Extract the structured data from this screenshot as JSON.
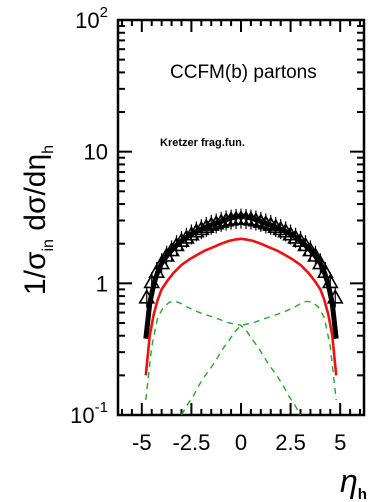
{
  "chart_data": {
    "type": "line",
    "title": "",
    "xlabel": "η",
    "xlabel_sub": "h",
    "ylabel_parts": {
      "prefix": "1/σ",
      "sub_in": "in",
      "middle": " dσ/dη",
      "sub_h": "h"
    },
    "xlim": [
      -6.2,
      6.2
    ],
    "ylim": [
      0.1,
      100
    ],
    "ylog": true,
    "grid": false,
    "xticks": [
      {
        "v": -5,
        "label": "-5"
      },
      {
        "v": -2.5,
        "label": "-2.5"
      },
      {
        "v": 0,
        "label": "0"
      },
      {
        "v": 2.5,
        "label": "2.5"
      },
      {
        "v": 5,
        "label": "5"
      }
    ],
    "yticks": [
      {
        "v": 0.1,
        "base": "10",
        "exp": "-1"
      },
      {
        "v": 1,
        "base": "1",
        "exp": ""
      },
      {
        "v": 10,
        "base": "10",
        "exp": ""
      },
      {
        "v": 100,
        "base": "10",
        "exp": "2"
      }
    ],
    "annotations": {
      "model": "CCFM(b) partons",
      "fragfun": "Kretzer frag.fun."
    },
    "series": [
      {
        "role": "data-triangles",
        "color": "#000000",
        "x": [
          -4.75,
          -4.5,
          -4.25,
          -4.0,
          -3.75,
          -3.5,
          -3.25,
          -3.0,
          -2.75,
          -2.5,
          -2.25,
          -2.0,
          -1.75,
          -1.5,
          -1.25,
          -1.0,
          -0.75,
          -0.5,
          -0.25,
          0.0,
          0.25,
          0.5,
          0.75,
          1.0,
          1.25,
          1.5,
          1.75,
          2.0,
          2.25,
          2.5,
          2.75,
          3.0,
          3.25,
          3.5,
          3.75,
          4.0,
          4.25,
          4.5,
          4.75
        ],
        "y": [
          0.78,
          1.02,
          1.22,
          1.42,
          1.62,
          1.78,
          1.95,
          2.1,
          2.22,
          2.35,
          2.48,
          2.58,
          2.68,
          2.78,
          2.85,
          2.93,
          3.0,
          3.05,
          3.08,
          3.1,
          3.08,
          3.05,
          3.0,
          2.93,
          2.85,
          2.78,
          2.68,
          2.58,
          2.48,
          2.35,
          2.22,
          2.1,
          1.95,
          1.78,
          1.62,
          1.42,
          1.22,
          1.02,
          0.78
        ]
      },
      {
        "role": "total-thick",
        "color": "#000000",
        "x": [
          -4.8,
          -4.6,
          -4.4,
          -4.2,
          -4.0,
          -3.7,
          -3.4,
          -3.0,
          -2.6,
          -2.2,
          -1.8,
          -1.4,
          -1.0,
          -0.6,
          -0.3,
          0.0,
          0.3,
          0.6,
          1.0,
          1.4,
          1.8,
          2.2,
          2.6,
          3.0,
          3.4,
          3.7,
          4.0,
          4.2,
          4.4,
          4.6,
          4.8
        ],
        "y": [
          0.38,
          0.7,
          0.98,
          1.22,
          1.42,
          1.65,
          1.85,
          2.1,
          2.32,
          2.5,
          2.65,
          2.8,
          2.95,
          3.1,
          3.2,
          3.25,
          3.2,
          3.1,
          2.95,
          2.8,
          2.65,
          2.5,
          2.32,
          2.1,
          1.85,
          1.65,
          1.42,
          1.22,
          0.98,
          0.7,
          0.38
        ]
      },
      {
        "role": "red-curve",
        "color": "#ee1111",
        "x": [
          -4.8,
          -4.6,
          -4.4,
          -4.2,
          -4.0,
          -3.7,
          -3.4,
          -3.0,
          -2.6,
          -2.2,
          -1.8,
          -1.4,
          -1.0,
          -0.6,
          -0.3,
          0.0,
          0.3,
          0.6,
          1.0,
          1.4,
          1.8,
          2.2,
          2.6,
          3.0,
          3.4,
          3.7,
          4.0,
          4.2,
          4.4,
          4.6,
          4.8
        ],
        "y": [
          0.2,
          0.4,
          0.58,
          0.75,
          0.9,
          1.05,
          1.2,
          1.38,
          1.52,
          1.65,
          1.78,
          1.88,
          2.0,
          2.1,
          2.15,
          2.18,
          2.15,
          2.1,
          2.0,
          1.88,
          1.78,
          1.65,
          1.52,
          1.38,
          1.2,
          1.05,
          0.9,
          0.75,
          0.58,
          0.4,
          0.2
        ]
      },
      {
        "role": "green-left",
        "color": "#22aa22",
        "dashed": true,
        "x": [
          -4.8,
          -4.5,
          -4.2,
          -3.9,
          -3.6,
          -3.3,
          -3.0,
          -2.7,
          -2.4,
          -2.1,
          -1.8,
          -1.5,
          -1.2,
          -0.9,
          -0.6,
          -0.3,
          0.0,
          0.3,
          0.6,
          0.9,
          1.2,
          1.5,
          1.8,
          2.1,
          2.4,
          2.7,
          3.0
        ],
        "y": [
          0.13,
          0.33,
          0.55,
          0.66,
          0.72,
          0.73,
          0.7,
          0.66,
          0.63,
          0.6,
          0.58,
          0.56,
          0.54,
          0.52,
          0.5,
          0.49,
          0.48,
          0.43,
          0.37,
          0.32,
          0.27,
          0.23,
          0.2,
          0.17,
          0.14,
          0.12,
          0.1
        ]
      },
      {
        "role": "green-right",
        "color": "#22aa22",
        "dashed": true,
        "x": [
          -3.0,
          -2.7,
          -2.4,
          -2.1,
          -1.8,
          -1.5,
          -1.2,
          -0.9,
          -0.6,
          -0.3,
          0.0,
          0.3,
          0.6,
          0.9,
          1.2,
          1.5,
          1.8,
          2.1,
          2.4,
          2.7,
          3.0,
          3.3,
          3.6,
          3.9,
          4.2,
          4.5,
          4.8
        ],
        "y": [
          0.1,
          0.12,
          0.14,
          0.17,
          0.2,
          0.23,
          0.27,
          0.32,
          0.37,
          0.43,
          0.48,
          0.49,
          0.5,
          0.52,
          0.54,
          0.56,
          0.58,
          0.6,
          0.63,
          0.66,
          0.7,
          0.73,
          0.72,
          0.66,
          0.55,
          0.33,
          0.13
        ]
      }
    ]
  }
}
